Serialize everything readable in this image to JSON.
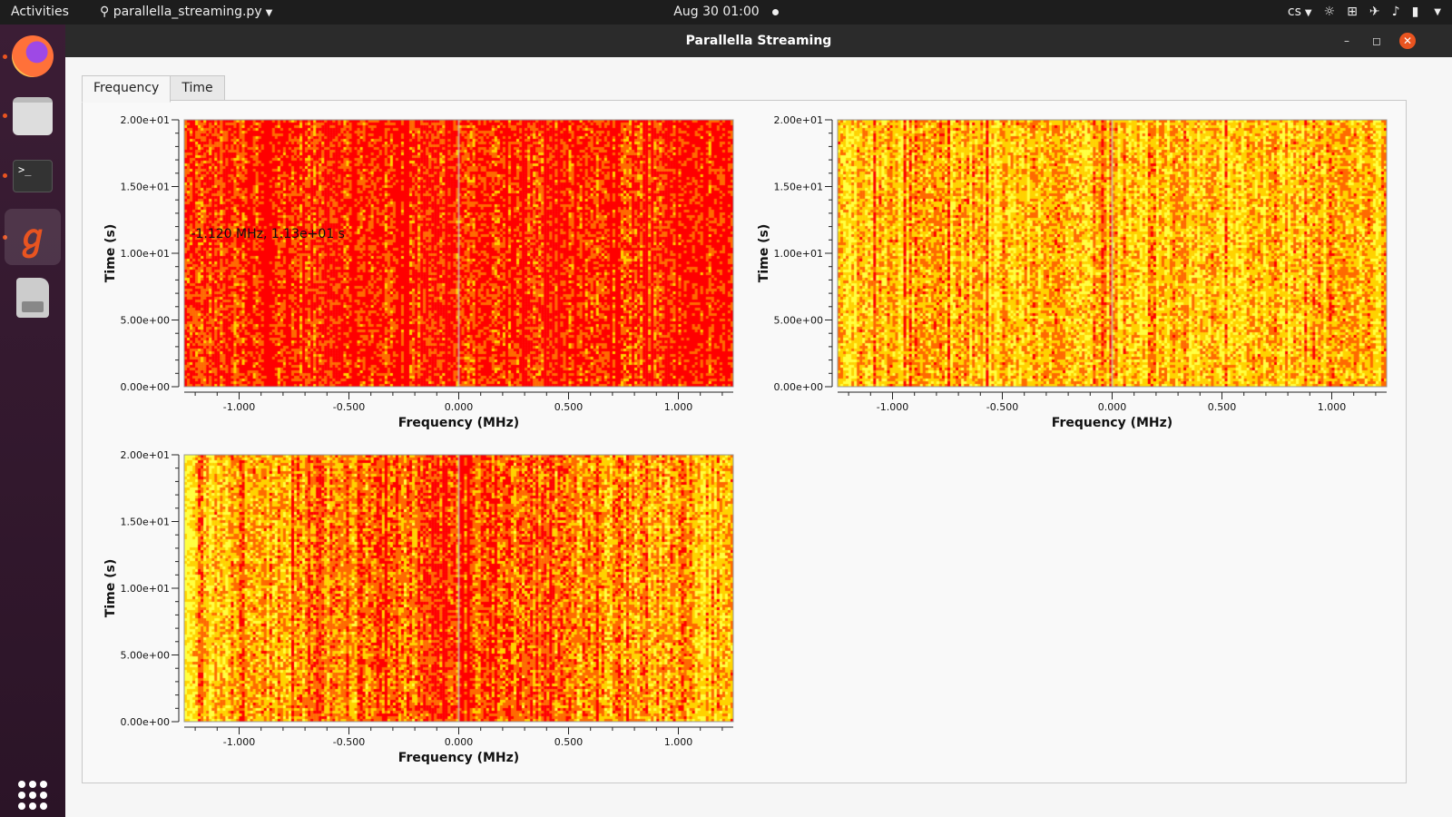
{
  "topbar": {
    "activities": "Activities",
    "app_name": "parallella_streaming.py",
    "clock": "Aug 30  01:00",
    "keyboard_layout": "cs"
  },
  "window": {
    "title": "Parallella Streaming",
    "minimize_glyph": "–",
    "maximize_glyph": "◻",
    "close_glyph": "✕"
  },
  "tabs": [
    {
      "label": "Frequency",
      "active": true
    },
    {
      "label": "Time",
      "active": false
    }
  ],
  "chart_data": [
    {
      "type": "heatmap",
      "title": "",
      "xlabel": "Frequency (MHz)",
      "ylabel": "Time (s)",
      "xlim": [
        -1.25,
        1.25
      ],
      "ylim": [
        0,
        20
      ],
      "x_ticks": [
        -1.0,
        -0.5,
        0.0,
        0.5,
        1.0
      ],
      "x_tick_labels": [
        "-1.000",
        "-0.500",
        "0.000",
        "0.500",
        "1.000"
      ],
      "y_ticks": [
        0,
        5,
        10,
        15,
        20
      ],
      "y_tick_labels": [
        "0.00e+00",
        "5.00e+00",
        "1.00e+01",
        "1.50e+01",
        "2.00e+01"
      ],
      "palette": [
        "#ff0000",
        "#ff6a00",
        "#ffd200",
        "#ffff40"
      ],
      "dominant_intensity": "high",
      "annotation": "-1.120 MHz, 1.13e+01 s"
    },
    {
      "type": "heatmap",
      "title": "",
      "xlabel": "Frequency (MHz)",
      "ylabel": "Time (s)",
      "xlim": [
        -1.25,
        1.25
      ],
      "ylim": [
        0,
        20
      ],
      "x_ticks": [
        -1.0,
        -0.5,
        0.0,
        0.5,
        1.0
      ],
      "x_tick_labels": [
        "-1.000",
        "-0.500",
        "0.000",
        "0.500",
        "1.000"
      ],
      "y_ticks": [
        0,
        5,
        10,
        15,
        20
      ],
      "y_tick_labels": [
        "0.00e+00",
        "5.00e+00",
        "1.00e+01",
        "1.50e+01",
        "2.00e+01"
      ],
      "palette": [
        "#ff0000",
        "#ff6a00",
        "#ffd200",
        "#ffff40"
      ],
      "dominant_intensity": "low"
    },
    {
      "type": "heatmap",
      "title": "",
      "xlabel": "Frequency (MHz)",
      "ylabel": "Time (s)",
      "xlim": [
        -1.25,
        1.25
      ],
      "ylim": [
        0,
        20
      ],
      "x_ticks": [
        -1.0,
        -0.5,
        0.0,
        0.5,
        1.0
      ],
      "x_tick_labels": [
        "-1.000",
        "-0.500",
        "0.000",
        "0.500",
        "1.000"
      ],
      "y_ticks": [
        0,
        5,
        10,
        15,
        20
      ],
      "y_tick_labels": [
        "0.00e+00",
        "5.00e+00",
        "1.00e+01",
        "1.50e+01",
        "2.00e+01"
      ],
      "palette": [
        "#ff0000",
        "#ff6a00",
        "#ffd200",
        "#ffff40"
      ],
      "dominant_intensity": "center-high"
    }
  ]
}
